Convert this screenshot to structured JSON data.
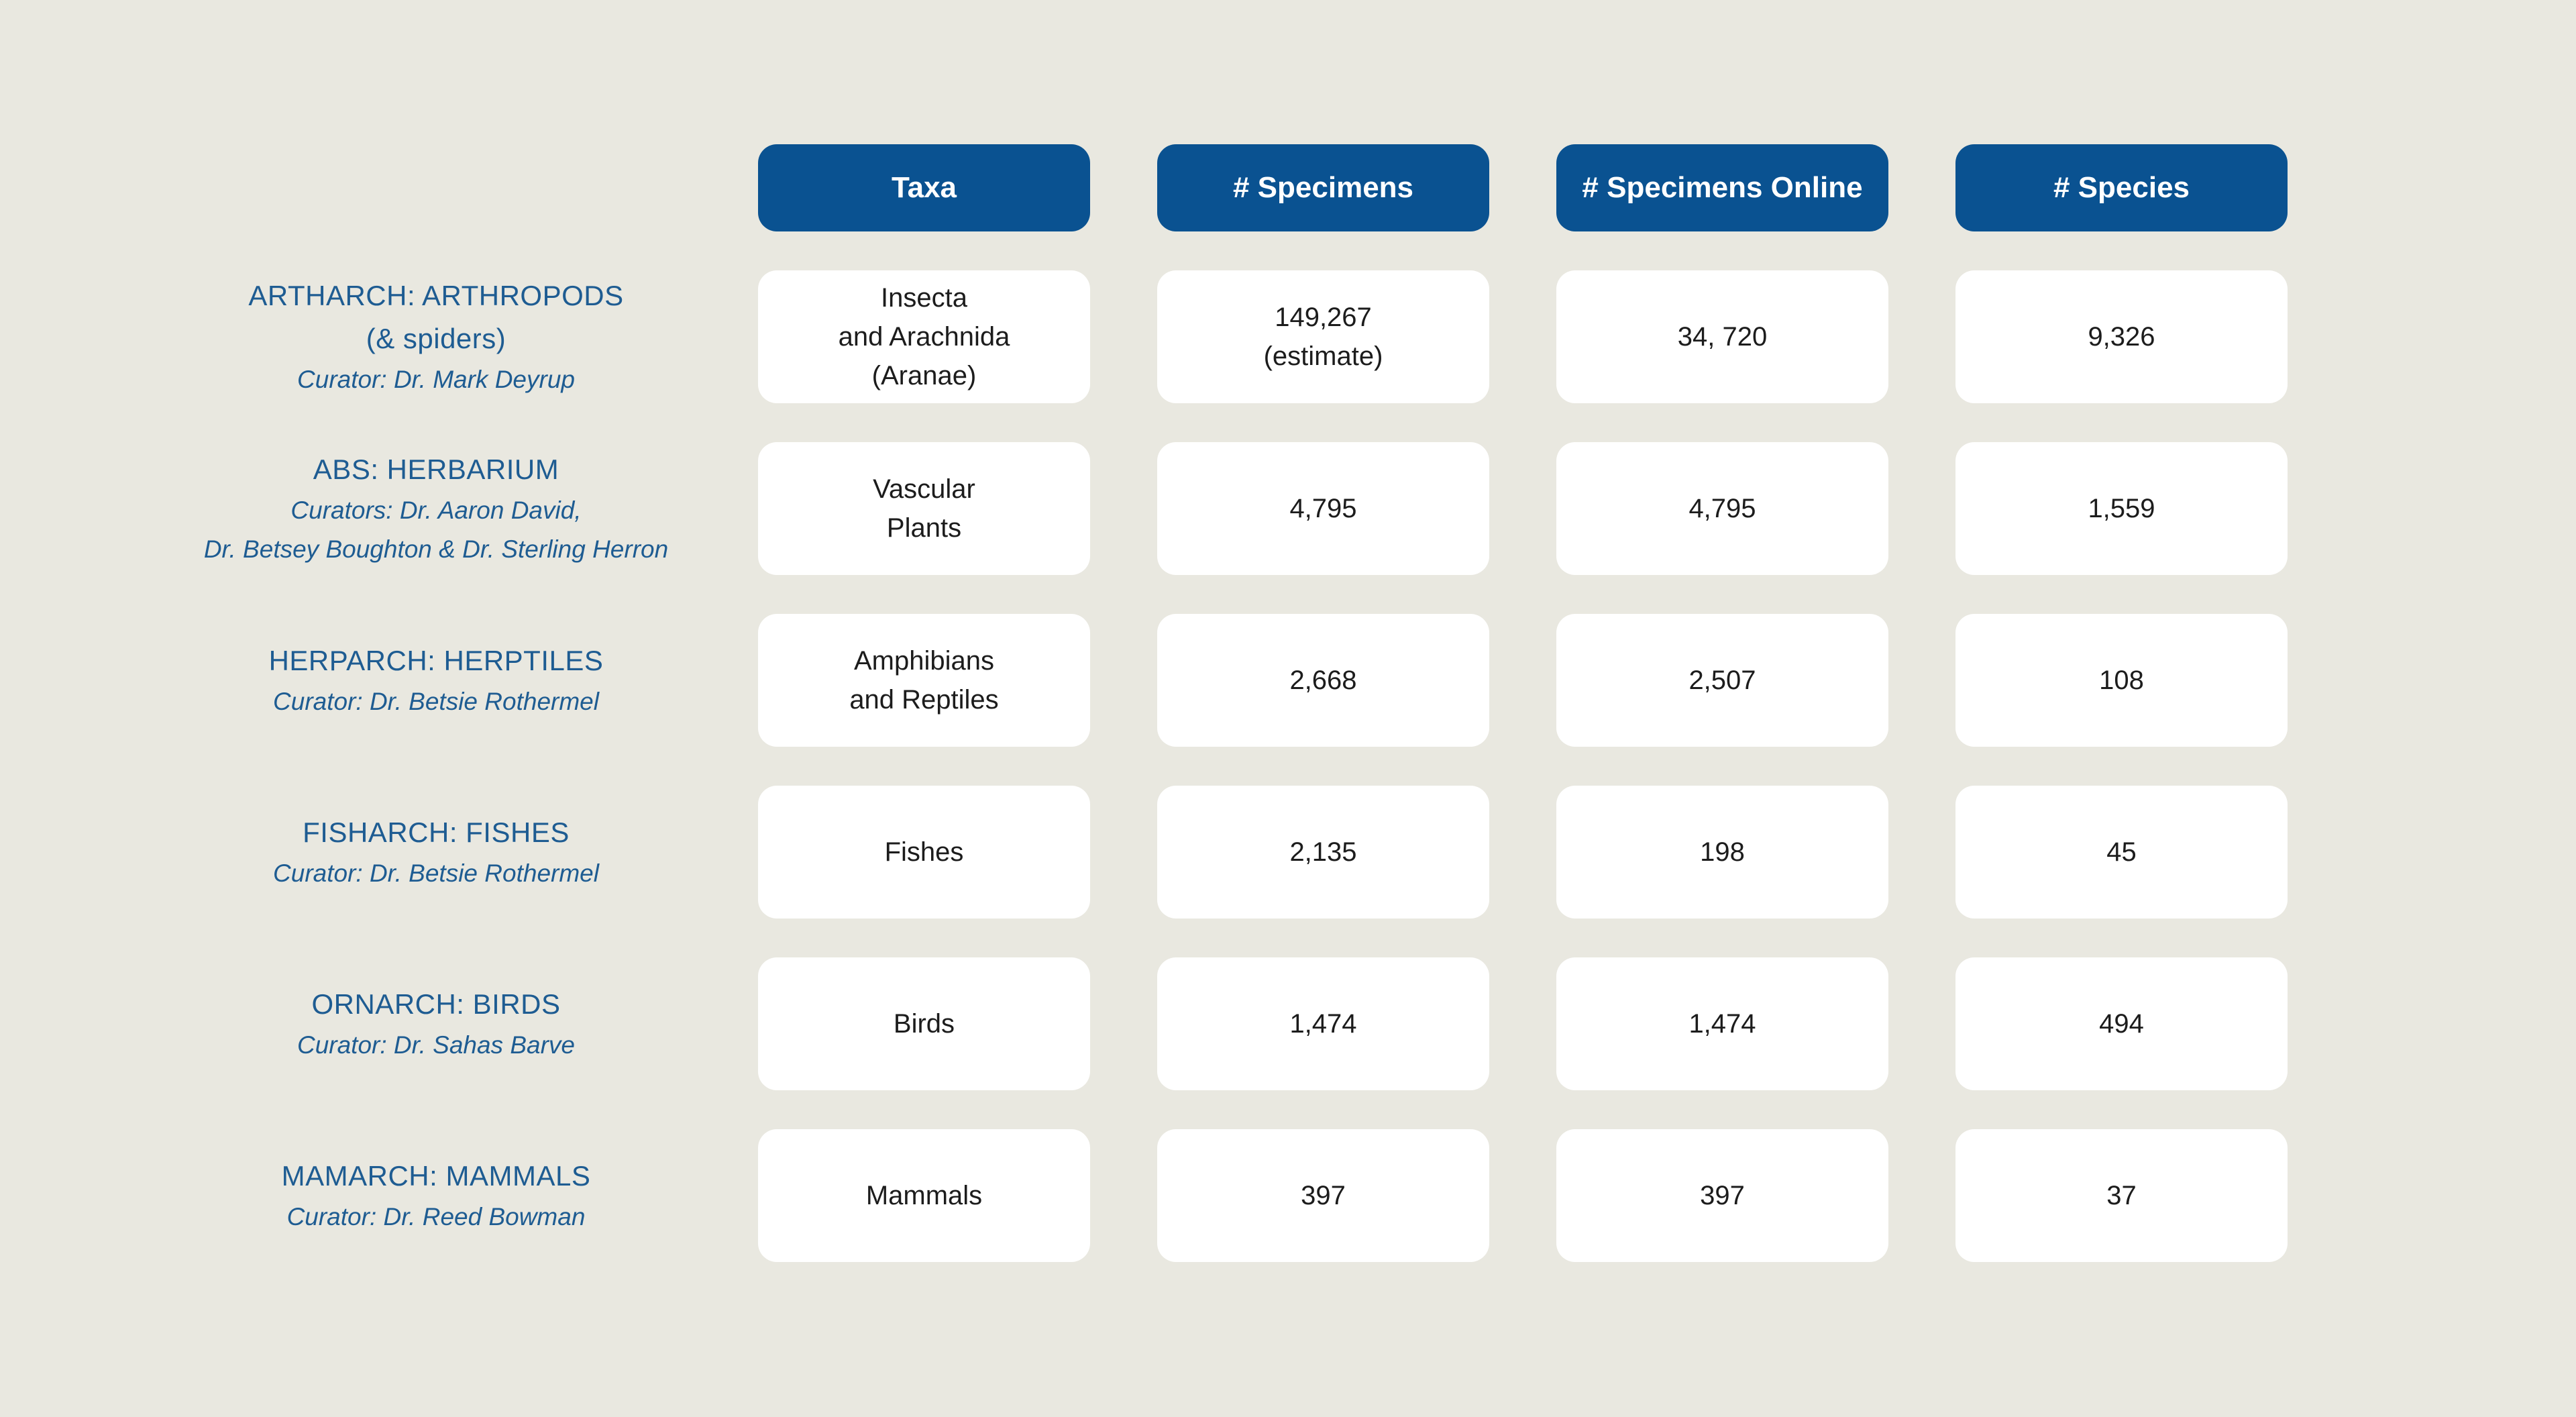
{
  "colors": {
    "page_background": "#e9e8e0",
    "header_background": "#0a5291",
    "header_text": "#ffffff",
    "label_text": "#1e5c92",
    "cell_background": "#ffffff",
    "cell_text": "#1c1c1c"
  },
  "chart_data": {
    "type": "table",
    "columns": [
      "Taxa",
      "# Specimens",
      "# Specimens Online",
      "# Species"
    ],
    "rows": [
      {
        "collection": "ARTHARCH: ARTHROPODS\n(& spiders)",
        "curator": "Curator: Dr. Mark Deyrup",
        "taxa": "Insecta\nand Arachnida\n(Aranae)",
        "num_specimens": "149,267\n(estimate)",
        "num_specimens_online": "34, 720",
        "num_species": "9,326"
      },
      {
        "collection": "ABS: HERBARIUM",
        "curator": "Curators: Dr. Aaron David,\nDr. Betsey Boughton & Dr. Sterling Herron",
        "taxa": "Vascular\nPlants",
        "num_specimens": "4,795",
        "num_specimens_online": "4,795",
        "num_species": "1,559"
      },
      {
        "collection": "HERPARCH: HERPTILES",
        "curator": "Curator: Dr. Betsie Rothermel",
        "taxa": "Amphibians\nand Reptiles",
        "num_specimens": "2,668",
        "num_specimens_online": "2,507",
        "num_species": "108"
      },
      {
        "collection": "FISHARCH: FISHES",
        "curator": "Curator: Dr. Betsie Rothermel",
        "taxa": "Fishes",
        "num_specimens": "2,135",
        "num_specimens_online": "198",
        "num_species": "45"
      },
      {
        "collection": "ORNARCH: BIRDS",
        "curator": "Curator: Dr. Sahas Barve",
        "taxa": "Birds",
        "num_specimens": "1,474",
        "num_specimens_online": "1,474",
        "num_species": "494"
      },
      {
        "collection": "MAMARCH: MAMMALS",
        "curator": "Curator: Dr. Reed Bowman",
        "taxa": "Mammals",
        "num_specimens": "397",
        "num_specimens_online": "397",
        "num_species": "37"
      }
    ]
  }
}
